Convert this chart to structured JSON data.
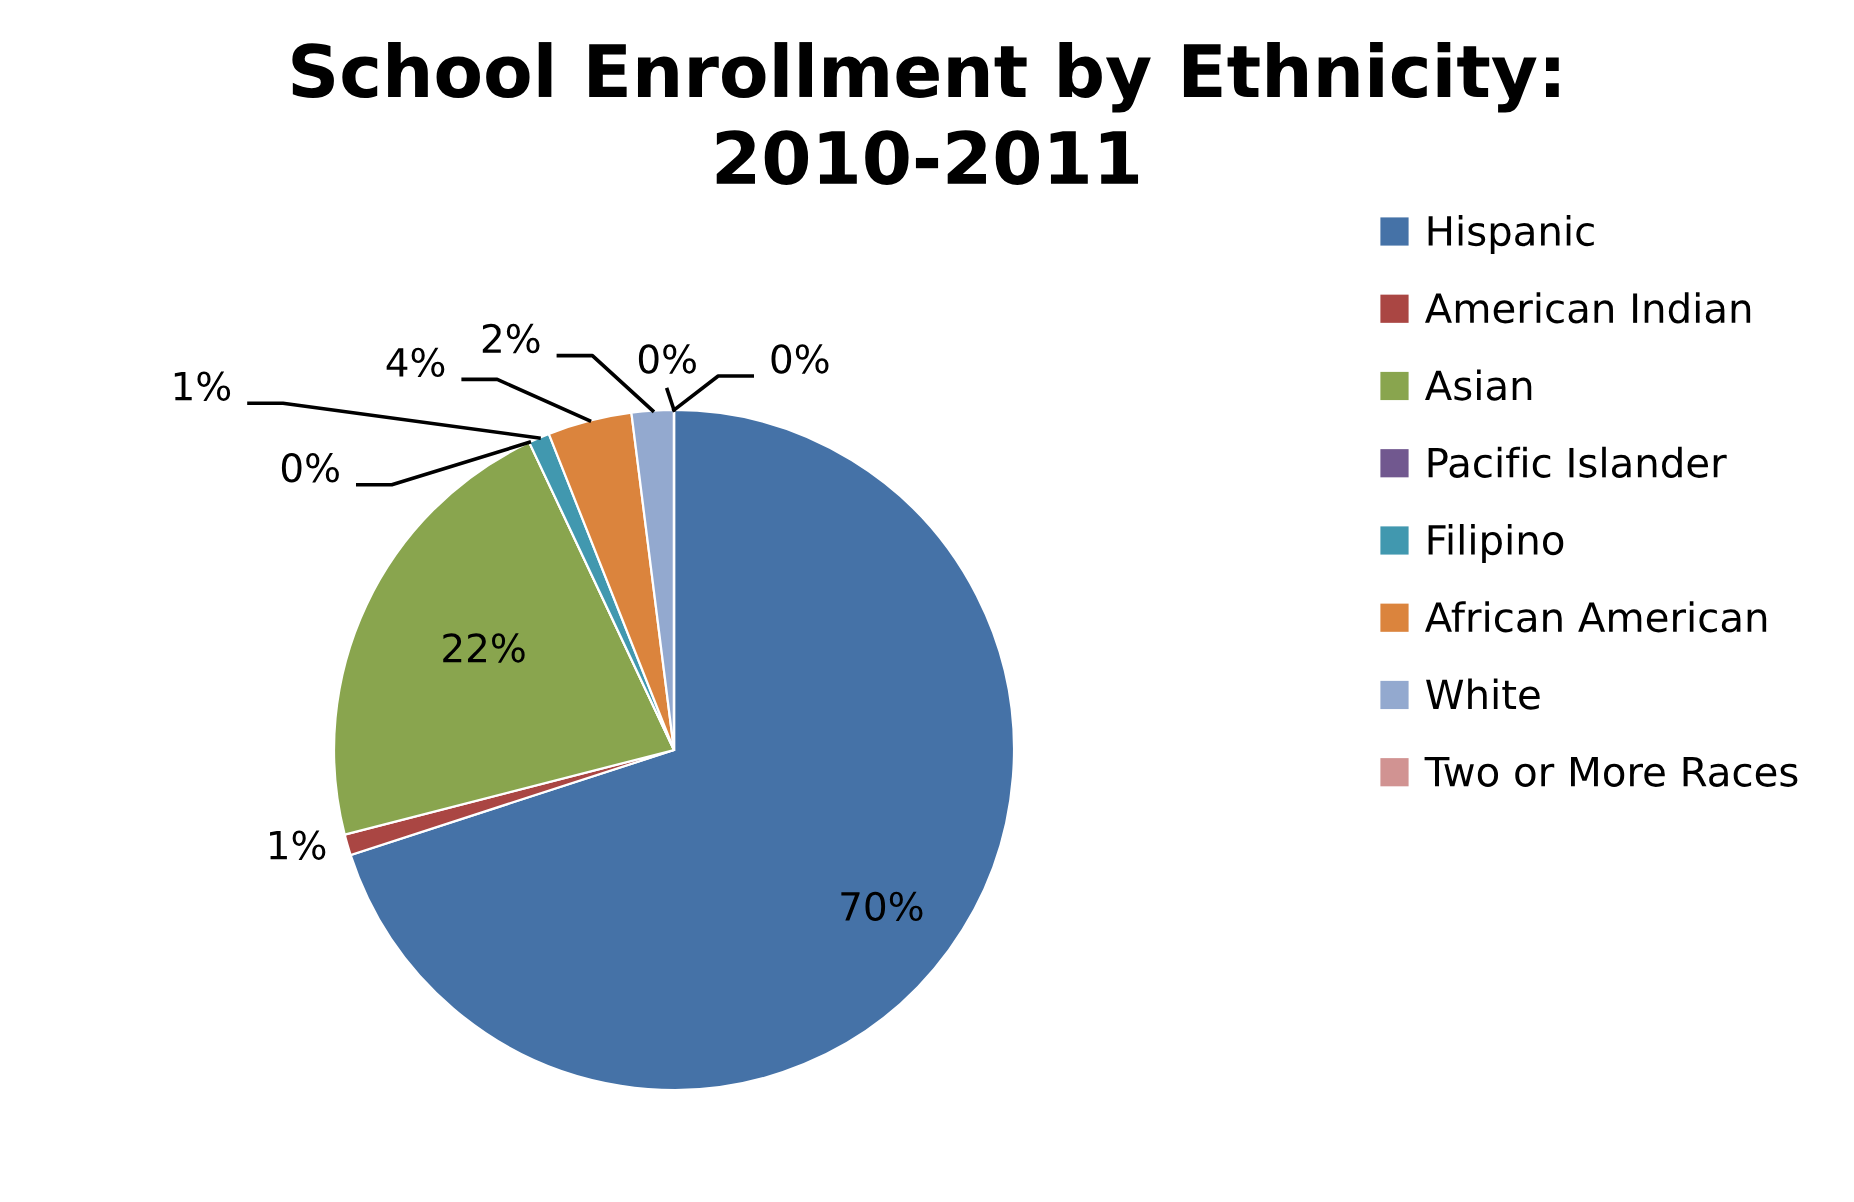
{
  "chart_data": {
    "type": "pie",
    "title": "School Enrollment by Ethnicity:\n2010-2011",
    "categories": [
      "Hispanic",
      "American Indian",
      "Asian",
      "Pacific Islander",
      "Filipino",
      "African American",
      "White",
      "Two or More Races",
      null
    ],
    "values": [
      70,
      1,
      22,
      0,
      1,
      4,
      2,
      0,
      0
    ],
    "value_labels": [
      "70%",
      "1%",
      "22%",
      "0%",
      "1%",
      "4%",
      "2%",
      "0%",
      "0%"
    ],
    "colors": [
      "#4572a7",
      "#aa4643",
      "#89a54e",
      "#71588f",
      "#4198af",
      "#db843d",
      "#93a9cf",
      "#d19392",
      "#b9cd96"
    ],
    "legend": "right"
  }
}
